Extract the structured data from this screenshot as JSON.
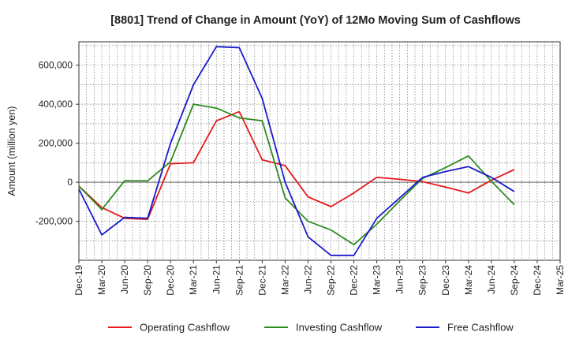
{
  "chart_data": {
    "type": "line",
    "title": "[8801]  Trend of Change in Amount (YoY) of 12Mo Moving Sum of Cashflows",
    "xlabel": "",
    "ylabel": "Amount (million yen)",
    "ylim": [
      -400000,
      720000
    ],
    "yticks": [
      -200000,
      0,
      200000,
      400000,
      600000
    ],
    "ytick_labels": [
      "-200,000",
      "0",
      "200,000",
      "400,000",
      "600,000"
    ],
    "categories": [
      "Dec-19",
      "Mar-20",
      "Jun-20",
      "Sep-20",
      "Dec-20",
      "Mar-21",
      "Jun-21",
      "Sep-21",
      "Dec-21",
      "Mar-22",
      "Jun-22",
      "Sep-22",
      "Dec-22",
      "Mar-23",
      "Jun-23",
      "Sep-23",
      "Dec-23",
      "Mar-24",
      "Jun-24",
      "Sep-24",
      "Dec-24",
      "Mar-25"
    ],
    "x_tick_labels": [
      "Dec-19",
      "Mar-20",
      "Jun-20",
      "Sep-20",
      "Dec-20",
      "Mar-21",
      "Jun-21",
      "Sep-21",
      "Dec-21",
      "Mar-22",
      "Jun-22",
      "Sep-22",
      "Dec-22",
      "Mar-23",
      "Jun-23",
      "Sep-23",
      "Dec-23",
      "Mar-24",
      "Jun-24",
      "Sep-24",
      "Dec-24",
      "Mar-25"
    ],
    "grid": true,
    "legend_position": "bottom",
    "series": [
      {
        "name": "Operating Cashflow",
        "color": "#e41a1c",
        "values": [
          -20000,
          -130000,
          -185000,
          -190000,
          95000,
          100000,
          315000,
          362000,
          115000,
          85000,
          -75000,
          -125000,
          -55000,
          25000,
          15000,
          3000,
          -25000,
          -55000,
          10000,
          65000,
          null,
          null
        ]
      },
      {
        "name": "Investing Cashflow",
        "color": "#2e8b22",
        "values": [
          -20000,
          -140000,
          8000,
          7000,
          105000,
          400000,
          380000,
          330000,
          315000,
          -80000,
          -200000,
          -245000,
          -320000,
          -215000,
          -95000,
          20000,
          75000,
          135000,
          5000,
          -115000,
          null,
          null
        ]
      },
      {
        "name": "Free Cashflow",
        "color": "#1a1acc",
        "values": [
          -35000,
          -270000,
          -180000,
          -185000,
          200000,
          500000,
          695000,
          690000,
          430000,
          0,
          -280000,
          -375000,
          -375000,
          -185000,
          -80000,
          25000,
          55000,
          80000,
          25000,
          -48000,
          null,
          null
        ]
      }
    ]
  }
}
